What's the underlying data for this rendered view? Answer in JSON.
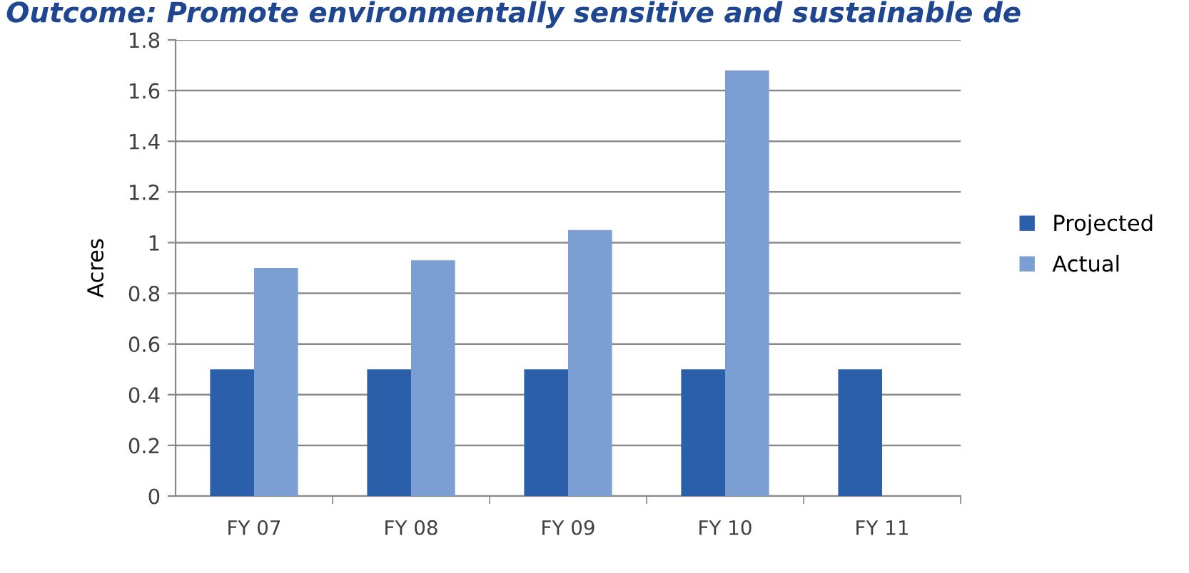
{
  "chart_data": {
    "type": "bar",
    "title": "Outcome: Promote environmentally sensitive and sustainable de",
    "ylabel": "Acres",
    "categories": [
      "FY 07",
      "FY 08",
      "FY 09",
      "FY 10",
      "FY 11"
    ],
    "series": [
      {
        "name": "Projected",
        "color": "#2b5fa9",
        "values": [
          0.5,
          0.5,
          0.5,
          0.5,
          0.5
        ]
      },
      {
        "name": "Actual",
        "color": "#7c9fd3",
        "values": [
          0.9,
          0.93,
          1.05,
          1.68,
          null
        ]
      }
    ],
    "ylim": [
      0,
      1.8
    ],
    "yticks": [
      0,
      0.2,
      0.4,
      0.6,
      0.8,
      1,
      1.2,
      1.4,
      1.6,
      1.8
    ],
    "grid": "y",
    "legend": "right"
  }
}
